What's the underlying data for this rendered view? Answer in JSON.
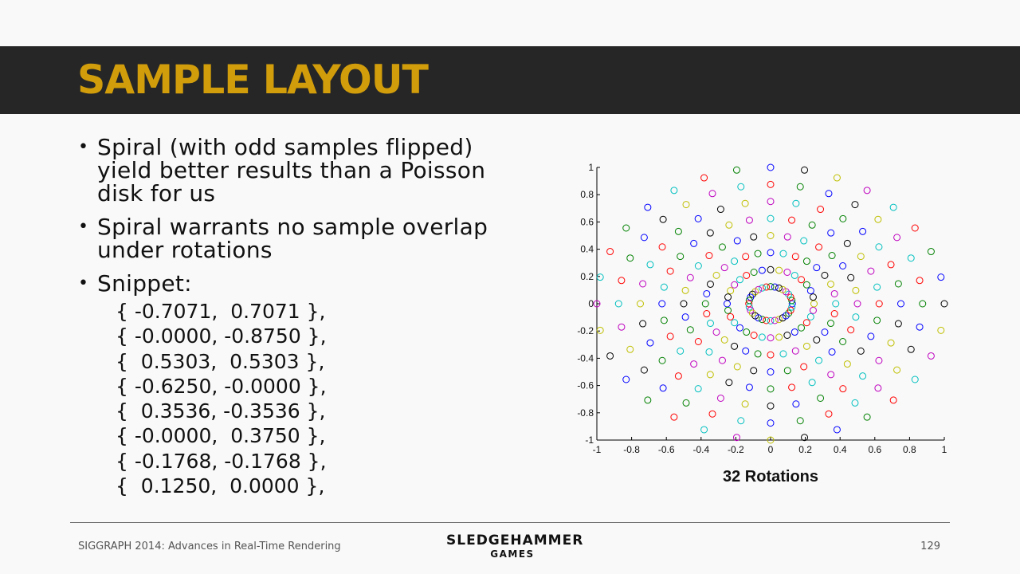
{
  "title": "SAMPLE LAYOUT",
  "bullets": [
    "Spiral (with odd samples flipped) yield better results than a Poisson disk for us",
    "Spiral warrants no sample overlap under rotations",
    "Snippet:"
  ],
  "snippet_lines": [
    "{ -0.7071,  0.7071 },",
    "{ -0.0000, -0.8750 },",
    "{  0.5303,  0.5303 },",
    "{ -0.6250, -0.0000 },",
    "{  0.3536, -0.3536 },",
    "{ -0.0000,  0.3750 },",
    "{ -0.1768, -0.1768 },",
    "{  0.1250,  0.0000 },"
  ],
  "chart_caption": "32 Rotations",
  "chart_data": {
    "type": "scatter",
    "title": "",
    "xlabel": "",
    "ylabel": "",
    "xlim": [
      -1,
      1
    ],
    "ylim": [
      -1,
      1
    ],
    "grid": false,
    "xticks": [
      "-1",
      "-0.8",
      "-0.6",
      "-0.4",
      "-0.2",
      "0",
      "0.2",
      "0.4",
      "0.6",
      "0.8",
      "1"
    ],
    "yticks": [
      "-1",
      "-0.8",
      "-0.6",
      "-0.4",
      "-0.2",
      "0",
      "0.2",
      "0.4",
      "0.6",
      "0.8",
      "1"
    ],
    "marker": "open-circle",
    "rotations": 32,
    "sample_radii": [
      1.0,
      0.875,
      0.75,
      0.625,
      0.5,
      0.375,
      0.25,
      0.125
    ],
    "series_colors": [
      "#0000ff",
      "#008000",
      "#ff0000",
      "#00bfbf",
      "#bf00bf",
      "#bfbf00",
      "#000000"
    ]
  },
  "footer": {
    "left": "SIGGRAPH 2014: Advances in Real-Time Rendering",
    "logo_line1": "SLEDGEHAMMER",
    "logo_line2": "GAMES",
    "page_number": "129"
  }
}
